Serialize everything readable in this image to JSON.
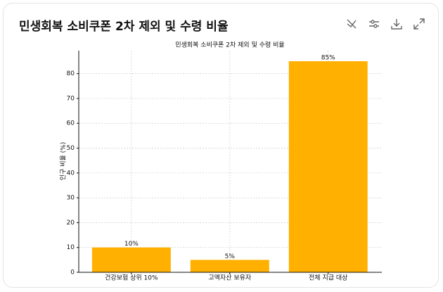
{
  "header": {
    "title": "민생회복 소비쿠폰 2차 제외 및 수령 비율"
  },
  "chart_data": {
    "type": "bar",
    "title": "민생회복 소비쿠폰 2차 제외 및 수령 비율",
    "ylabel": "인구 비율 (%)",
    "categories": [
      "건강보험 상위 10%",
      "고액자산 보유자",
      "전체 지급 대상"
    ],
    "values": [
      10,
      5,
      85
    ],
    "value_labels": [
      "10%",
      "5%",
      "85%"
    ],
    "color": "#ffb000",
    "ylim": [
      0,
      89.25
    ],
    "yticks": [
      0,
      10,
      20,
      30,
      40,
      50,
      60,
      70,
      80
    ],
    "grid": true
  }
}
